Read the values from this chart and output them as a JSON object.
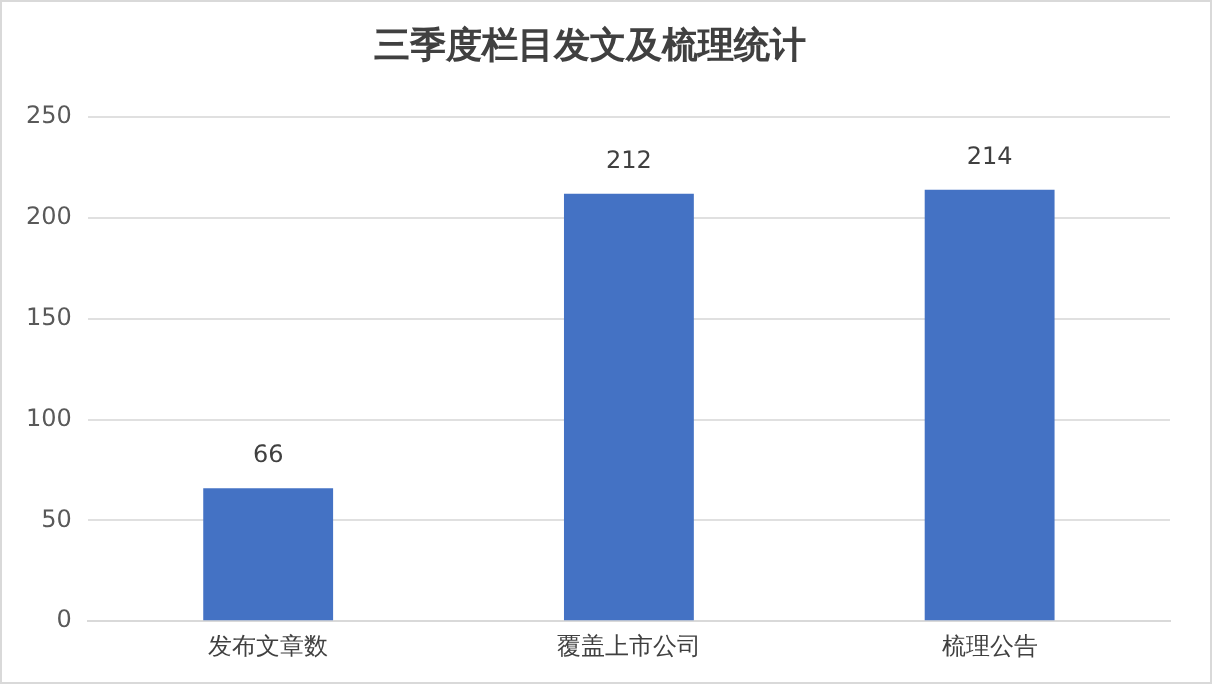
{
  "chart_data": {
    "type": "bar",
    "title": "三季度栏目发文及梳理统计",
    "categories": [
      "发布文章数",
      "覆盖上市公司",
      "梳理公告"
    ],
    "values": [
      66,
      212,
      214
    ],
    "color": "#4472c4",
    "ylim": [
      0,
      250
    ],
    "yticks": [
      0,
      50,
      100,
      150,
      200,
      250
    ],
    "grid": "y",
    "data_labels": true
  }
}
